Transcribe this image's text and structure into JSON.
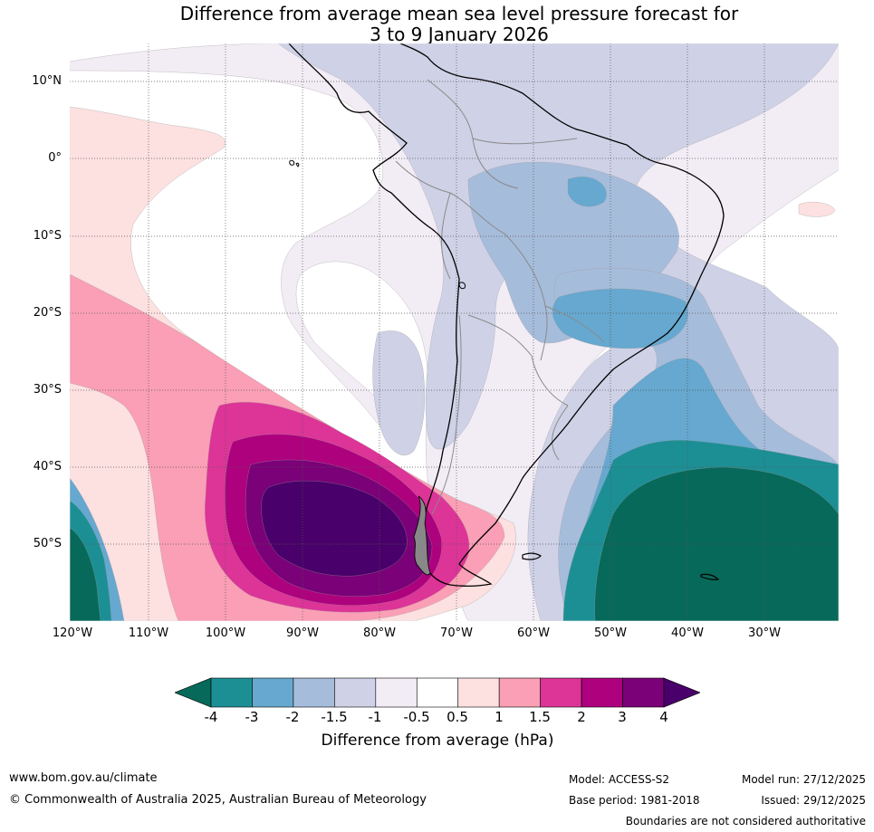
{
  "title": {
    "line1": "Difference from average mean sea level pressure forecast for",
    "line2": "3 to 9 January 2026"
  },
  "map": {
    "lat_labels": [
      "10°N",
      "0°",
      "10°S",
      "20°S",
      "30°S",
      "40°S",
      "50°S"
    ],
    "lon_labels": [
      "120°W",
      "110°W",
      "100°W",
      "90°W",
      "80°W",
      "70°W",
      "60°W",
      "50°W",
      "40°W",
      "30°W"
    ],
    "colors": {
      "minus4_below": "#07695a",
      "minus3_4": "#1c8f95",
      "minus2_3": "#66a8cf",
      "minus1_5_2": "#a6bcdb",
      "minus1_1_5": "#cfd1e6",
      "minus0_5_1": "#f2ecf5",
      "neutral": "#ffffff",
      "plus0_5_1": "#fde0e0",
      "plus1_1_5": "#fa9fb5",
      "plus1_5_2": "#dd3497",
      "plus2_3": "#ae017e",
      "plus3_4": "#7a0177",
      "plus4_above": "#49006a"
    }
  },
  "colorbar": {
    "ticks": [
      "-4",
      "-3",
      "-2",
      "-1.5",
      "-1",
      "-0.5",
      "0.5",
      "1",
      "1.5",
      "2",
      "3",
      "4"
    ],
    "colors": [
      "#1c8f95",
      "#66a8cf",
      "#a6bcdb",
      "#cfd1e6",
      "#f2ecf5",
      "#ffffff",
      "#fde0e0",
      "#fa9fb5",
      "#dd3497",
      "#ae017e",
      "#7a0177"
    ],
    "under_color": "#07695a",
    "over_color": "#49006a",
    "label": "Difference from average (hPa)"
  },
  "footer": {
    "website": "www.bom.gov.au/climate",
    "copyright": "© Commonwealth of Australia 2025, Australian Bureau of Meteorology",
    "model": "Model: ACCESS-S2",
    "base_period": "Base period: 1981-2018",
    "model_run": "Model run: 27/12/2025",
    "issued": "Issued: 29/12/2025",
    "disclaimer": "Boundaries are not considered authoritative"
  }
}
